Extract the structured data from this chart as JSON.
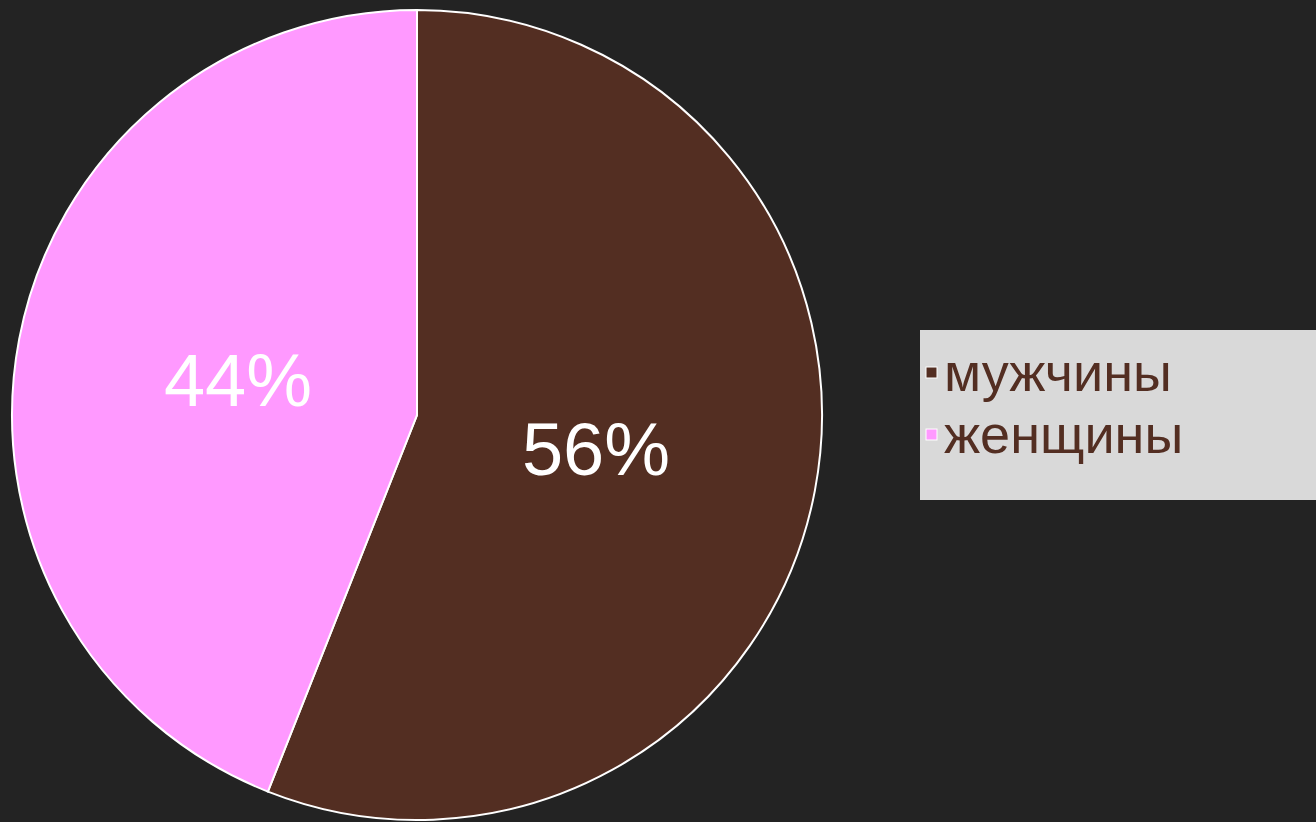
{
  "chart_data": {
    "type": "pie",
    "categories": [
      "мужчины",
      "женщины"
    ],
    "values": [
      56,
      44
    ],
    "colors": [
      "#532e22",
      "#ff99ff"
    ],
    "value_labels": [
      "56%",
      "44%"
    ],
    "legend": "right"
  }
}
